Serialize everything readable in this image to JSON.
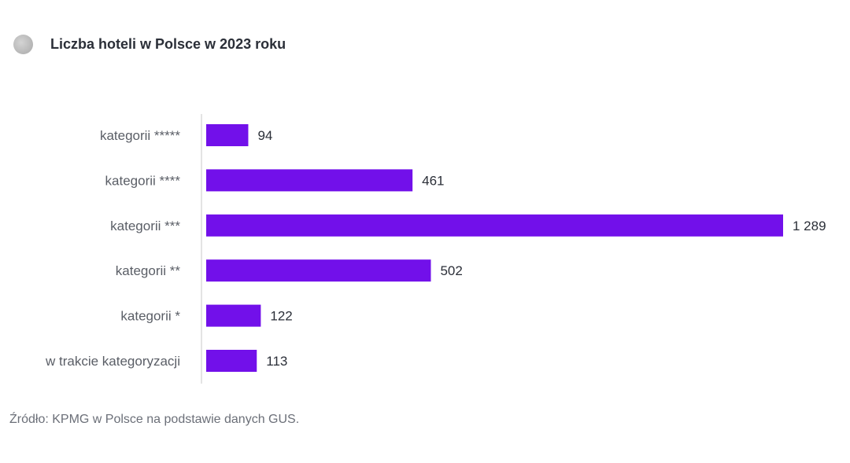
{
  "chart_data": {
    "type": "bar",
    "orientation": "horizontal",
    "title": "Liczba hoteli w Polsce w 2023 roku",
    "categories": [
      "kategorii *****",
      "kategorii ****",
      "kategorii ***",
      "kategorii **",
      "kategorii *",
      "w trakcie kategoryzacji"
    ],
    "values": [
      94,
      461,
      1289,
      502,
      122,
      113
    ],
    "value_labels": [
      "94",
      "461",
      "1 289",
      "502",
      "122",
      "113"
    ],
    "xlim": [
      0,
      1289
    ],
    "grid": false,
    "bar_color": "#7210EA"
  },
  "source": "Źródło: KPMG w Polsce na podstawie danych GUS."
}
